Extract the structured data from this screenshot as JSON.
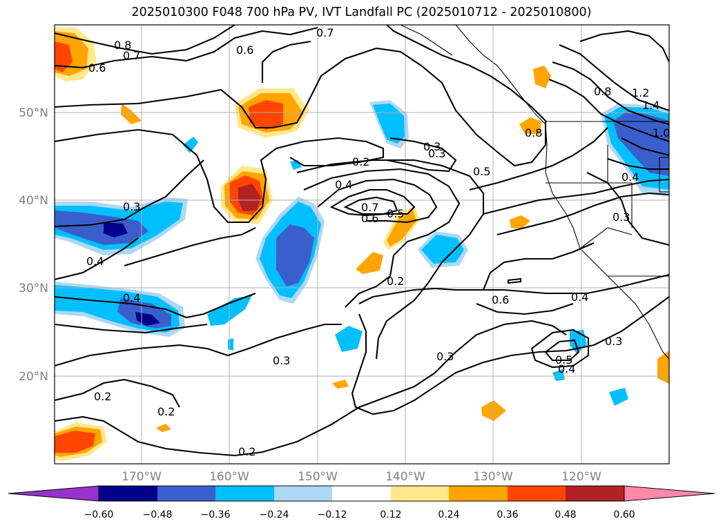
{
  "title": "2025010300 F048 700 hPa PV, IVT Landfall PC (2025010712 - 2025010800)",
  "map": {
    "lat_labels": [
      "50°N",
      "40°N",
      "30°N",
      "20°N"
    ],
    "lon_labels": [
      "170°W",
      "160°W",
      "150°W",
      "140°W",
      "130°W",
      "120°W"
    ],
    "contour_labels": [
      "0.8",
      "0.7",
      "0.6",
      "0.7",
      "0.6",
      "0.3",
      "0.2",
      "0.4",
      "0.7",
      "0.6",
      "0.5",
      "0.3",
      "0.5",
      "0.2",
      "0.6",
      "0.4",
      "0.3",
      "0.3",
      "0.5",
      "0.4",
      "0.3",
      "0.2",
      "0.2",
      "0.2",
      "0.4",
      "0.4",
      "0.3",
      "0.8",
      "0.8",
      "1.2",
      "1.4",
      "1.0",
      "0.4",
      "0.3"
    ],
    "land_color": "none",
    "grid": true
  },
  "colorbar": {
    "ticks": [
      "−0.60",
      "−0.48",
      "−0.36",
      "−0.24",
      "−0.12",
      "0.12",
      "0.24",
      "0.36",
      "0.48",
      "0.60"
    ],
    "colors": [
      "#9932cc",
      "#00008b",
      "#3a5fcd",
      "#00bfff",
      "#add8f5",
      "#ffffff",
      "#ffe88a",
      "#ffa500",
      "#ff4500",
      "#b22222",
      "#ff88aa"
    ]
  }
}
